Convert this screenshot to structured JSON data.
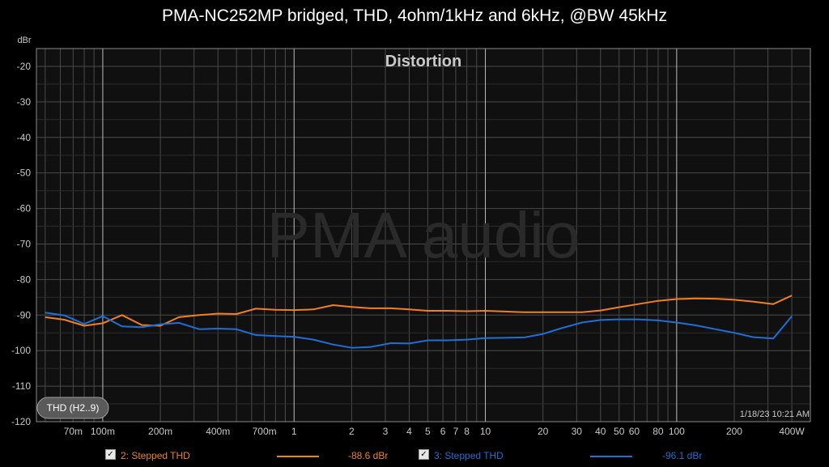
{
  "window": {
    "title": "PMA-NC252MP bridged, THD, 4ohm/1kHz and 6kHz, @BW 45kHz"
  },
  "watermark": "PMA audio",
  "button": {
    "label": "THD (H2..9)"
  },
  "timestamp": "1/18/23 10:21 AM",
  "legend": [
    {
      "check": "✓",
      "label": "2: Stepped THD",
      "value": "-88.6 dBr",
      "color": "#f08020"
    },
    {
      "check": "✓",
      "label": "3: Stepped THD",
      "value": "-96.1 dBr",
      "color": "#1f6fd6"
    }
  ],
  "chart_data": {
    "type": "line",
    "title": "Distortion",
    "ylabel": "dBr",
    "xlabel": "",
    "x_scale": "log",
    "xlim": [
      0.045,
      500
    ],
    "ylim": [
      -120,
      -15
    ],
    "y_ticks": [
      -20,
      -30,
      -40,
      -50,
      -60,
      -70,
      -80,
      -90,
      -100,
      -110,
      -120
    ],
    "x_ticks": [
      {
        "v": 0.07,
        "label": "70m"
      },
      {
        "v": 0.1,
        "label": "100m"
      },
      {
        "v": 0.2,
        "label": "200m"
      },
      {
        "v": 0.4,
        "label": "400m"
      },
      {
        "v": 0.7,
        "label": "700m"
      },
      {
        "v": 1,
        "label": "1"
      },
      {
        "v": 2,
        "label": "2"
      },
      {
        "v": 3,
        "label": "3"
      },
      {
        "v": 4,
        "label": "4"
      },
      {
        "v": 5,
        "label": "5"
      },
      {
        "v": 6,
        "label": "6"
      },
      {
        "v": 7,
        "label": "7"
      },
      {
        "v": 8,
        "label": "8"
      },
      {
        "v": 10,
        "label": "10"
      },
      {
        "v": 20,
        "label": "20"
      },
      {
        "v": 30,
        "label": "30"
      },
      {
        "v": 40,
        "label": "40"
      },
      {
        "v": 50,
        "label": "50"
      },
      {
        "v": 60,
        "label": "60"
      },
      {
        "v": 80,
        "label": "80"
      },
      {
        "v": 100,
        "label": "100"
      },
      {
        "v": 200,
        "label": "200"
      },
      {
        "v": 400,
        "label": "400W"
      }
    ],
    "grid": true,
    "series": [
      {
        "name": "2: Stepped THD",
        "color": "#f08020",
        "x": [
          0.05,
          0.063,
          0.08,
          0.1,
          0.126,
          0.16,
          0.2,
          0.25,
          0.32,
          0.4,
          0.5,
          0.63,
          0.8,
          1.0,
          1.26,
          1.6,
          2.0,
          2.5,
          3.2,
          4.0,
          5.0,
          6.3,
          8.0,
          10,
          12.6,
          16,
          20,
          25,
          32,
          40,
          50,
          63,
          80,
          100,
          126,
          160,
          200,
          250,
          320,
          400
        ],
        "y": [
          -90.6,
          -91.3,
          -93.0,
          -92.3,
          -90.0,
          -92.8,
          -93.0,
          -90.6,
          -90.0,
          -89.6,
          -89.7,
          -88.2,
          -88.5,
          -88.6,
          -88.4,
          -87.2,
          -87.7,
          -88.1,
          -88.1,
          -88.4,
          -88.8,
          -88.8,
          -88.9,
          -88.8,
          -89.0,
          -89.2,
          -89.2,
          -89.2,
          -89.2,
          -88.7,
          -87.8,
          -86.9,
          -86.0,
          -85.5,
          -85.3,
          -85.4,
          -85.7,
          -86.2,
          -86.9,
          -84.5
        ]
      },
      {
        "name": "3: Stepped THD",
        "color": "#1f6fd6",
        "x": [
          0.05,
          0.063,
          0.08,
          0.1,
          0.126,
          0.16,
          0.2,
          0.25,
          0.32,
          0.4,
          0.5,
          0.63,
          0.8,
          1.0,
          1.26,
          1.6,
          2.0,
          2.5,
          3.2,
          4.0,
          5.0,
          6.3,
          8.0,
          10,
          12.6,
          16,
          20,
          25,
          32,
          40,
          50,
          63,
          80,
          100,
          126,
          160,
          200,
          250,
          320,
          400
        ],
        "y": [
          -89.3,
          -90.1,
          -92.5,
          -90.3,
          -93.2,
          -93.4,
          -92.6,
          -92.2,
          -94.0,
          -93.8,
          -94.0,
          -95.6,
          -95.9,
          -96.1,
          -96.9,
          -98.3,
          -99.2,
          -99.0,
          -97.9,
          -98.0,
          -97.1,
          -97.1,
          -96.9,
          -96.5,
          -96.4,
          -96.3,
          -95.3,
          -93.7,
          -92.1,
          -91.4,
          -91.2,
          -91.2,
          -91.5,
          -92.1,
          -92.9,
          -94.0,
          -95.0,
          -96.2,
          -96.6,
          -90.3
        ]
      }
    ]
  }
}
